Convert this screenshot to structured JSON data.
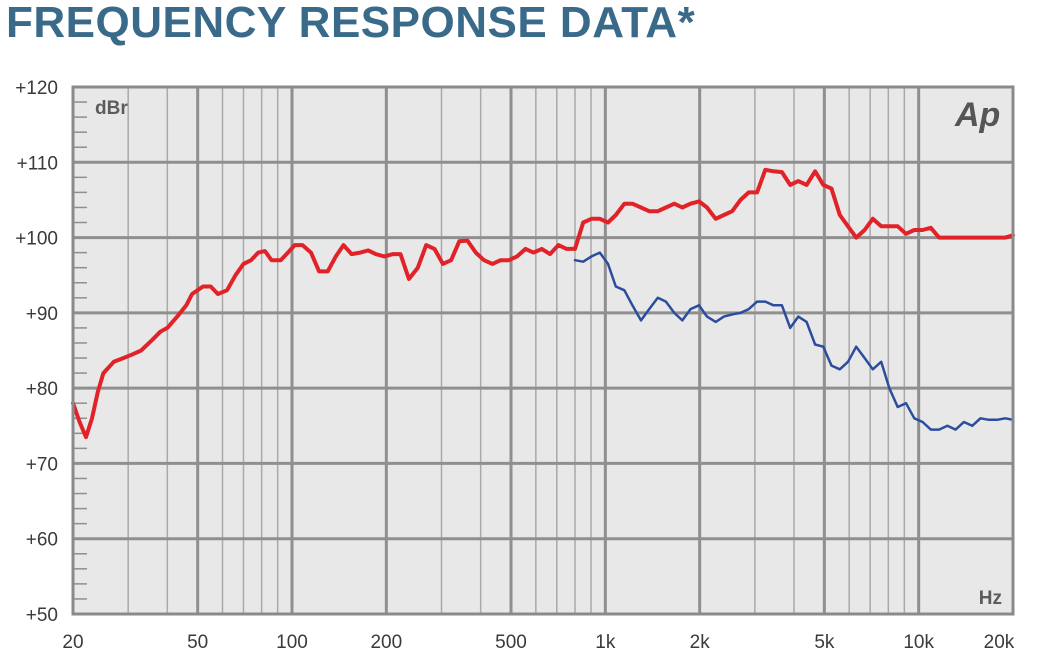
{
  "title": "FREQUENCY RESPONSE DATA*",
  "logo": "Ap",
  "chart_data": {
    "type": "line",
    "title": "FREQUENCY RESPONSE DATA*",
    "xlabel": "Hz",
    "ylabel": "dBr",
    "xscale": "log",
    "xlim": [
      20,
      20000
    ],
    "ylim": [
      50,
      120
    ],
    "grid": true,
    "x_ticks": [
      20,
      50,
      100,
      200,
      500,
      1000,
      2000,
      5000,
      10000,
      20000
    ],
    "x_tick_labels": [
      "20",
      "50",
      "100",
      "200",
      "500",
      "1k",
      "2k",
      "5k",
      "10k",
      "20k"
    ],
    "y_ticks": [
      50,
      60,
      70,
      80,
      90,
      100,
      110,
      120
    ],
    "y_tick_labels": [
      "+50",
      "+60",
      "+70",
      "+80",
      "+90",
      "+100",
      "+110",
      "+120"
    ],
    "series": [
      {
        "color": "#e12228",
        "x": [
          20,
          21,
          22,
          23,
          24,
          25,
          27,
          29,
          31,
          33,
          36,
          38,
          40,
          43,
          46,
          48,
          52,
          55,
          58,
          62,
          66,
          70,
          74,
          78,
          82,
          86,
          92,
          97,
          102,
          108,
          115,
          122,
          130,
          138,
          146,
          155,
          165,
          175,
          185,
          197,
          210,
          222,
          236,
          252,
          268,
          285,
          303,
          322,
          342,
          363,
          386,
          410,
          436,
          463,
          492,
          523,
          556,
          590,
          627,
          666,
          708,
          752,
          800,
          850,
          903,
          960,
          1020,
          1080,
          1150,
          1220,
          1300,
          1380,
          1470,
          1560,
          1660,
          1760,
          1870,
          1990,
          2110,
          2250,
          2390,
          2540,
          2700,
          2870,
          3050,
          3240,
          3440,
          3660,
          3890,
          4130,
          4390,
          4670,
          4960,
          5270,
          5600,
          5950,
          6320,
          6720,
          7140,
          7590,
          8060,
          8570,
          9110,
          9680,
          10290,
          10930,
          11620,
          12350,
          13120,
          13940,
          14820,
          15750,
          16740,
          17790,
          18900,
          20000
        ],
        "y": [
          78,
          75.5,
          73.5,
          76,
          79.5,
          82,
          83.5,
          84,
          84.5,
          85,
          86.5,
          87.5,
          88,
          89.5,
          91,
          92.5,
          93.5,
          93.5,
          92.5,
          93,
          95,
          96.5,
          97,
          98,
          98.2,
          97,
          97,
          98,
          99,
          99,
          98,
          95.5,
          95.5,
          97.5,
          99,
          97.8,
          98,
          98.3,
          97.8,
          97.5,
          97.8,
          97.8,
          94.5,
          96,
          99,
          98.5,
          96.5,
          97,
          99.5,
          99.6,
          98,
          97,
          96.5,
          97,
          97,
          97.5,
          98.5,
          98,
          98.5,
          97.8,
          99,
          98.5,
          98.5,
          102,
          102.5,
          102.5,
          102,
          103,
          104.5,
          104.5,
          104,
          103.5,
          103.5,
          104,
          104.5,
          104,
          104.5,
          104.8,
          104,
          102.5,
          103,
          103.5,
          105,
          106,
          106,
          109,
          108.8,
          108.7,
          107,
          107.5,
          107,
          108.8,
          107,
          106.5,
          103,
          101.5,
          100,
          101,
          102.5,
          101.5,
          101.5,
          101.5,
          100.5,
          101,
          101,
          101.3,
          100,
          100,
          100,
          100,
          100,
          100,
          100,
          100,
          100,
          100.3
        ]
      },
      {
        "color": "#2c4d9e",
        "x": [
          800,
          850,
          903,
          960,
          1020,
          1080,
          1150,
          1220,
          1300,
          1380,
          1470,
          1560,
          1660,
          1760,
          1870,
          1990,
          2110,
          2250,
          2390,
          2540,
          2700,
          2870,
          3050,
          3240,
          3440,
          3660,
          3890,
          4130,
          4390,
          4670,
          4960,
          5270,
          5600,
          5950,
          6320,
          6720,
          7140,
          7590,
          8060,
          8570,
          9110,
          9680,
          10290,
          10930,
          11620,
          12350,
          13120,
          13940,
          14820,
          15750,
          16740,
          17790,
          18900,
          20000
        ],
        "y": [
          97,
          96.8,
          97.5,
          98,
          96.5,
          93.5,
          93,
          91,
          89,
          90.5,
          92,
          91.5,
          90,
          89,
          90.5,
          91,
          89.5,
          88.8,
          89.5,
          89.8,
          90,
          90.5,
          91.5,
          91.5,
          91,
          91,
          88,
          89.5,
          88.8,
          85.8,
          85.5,
          83,
          82.5,
          83.5,
          85.5,
          84,
          82.5,
          83.5,
          80,
          77.5,
          78,
          76,
          75.5,
          74.5,
          74.5,
          75,
          74.5,
          75.5,
          75,
          76,
          75.8,
          75.8,
          76,
          75.8
        ]
      }
    ]
  }
}
